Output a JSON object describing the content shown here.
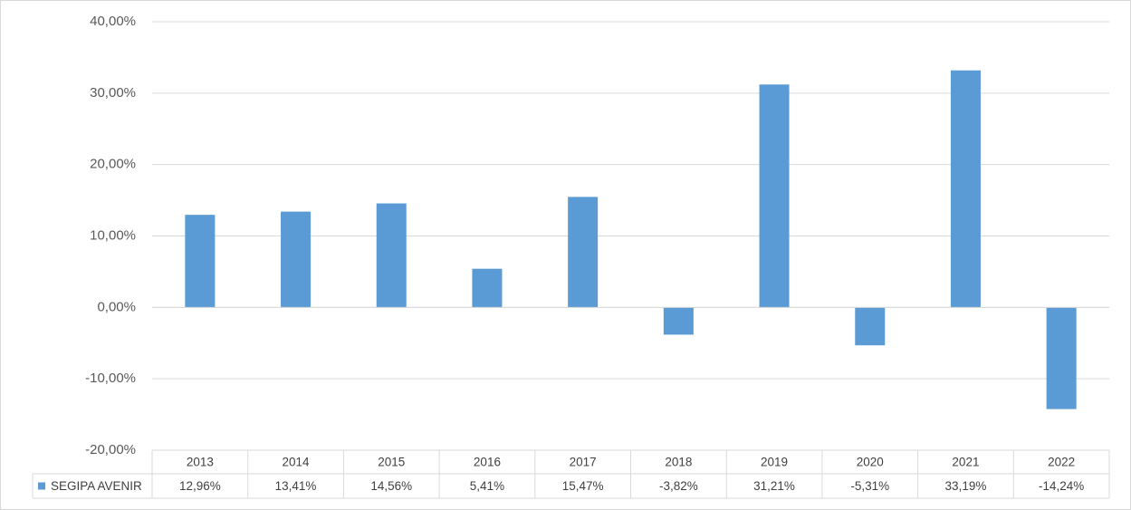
{
  "chart_data": {
    "type": "bar",
    "categories": [
      "2013",
      "2014",
      "2015",
      "2016",
      "2017",
      "2018",
      "2019",
      "2020",
      "2021",
      "2022"
    ],
    "series": [
      {
        "name": "SEGIPA AVENIR",
        "color": "#5b9bd5",
        "values": [
          12.96,
          13.41,
          14.56,
          5.41,
          15.47,
          -3.82,
          31.21,
          -5.31,
          33.19,
          -14.24
        ],
        "value_labels": [
          "12,96%",
          "13,41%",
          "14,56%",
          "5,41%",
          "15,47%",
          "-3,82%",
          "31,21%",
          "-5,31%",
          "33,19%",
          "-14,24%"
        ]
      }
    ],
    "ylim": [
      -20,
      40
    ],
    "yticks": [
      {
        "value": -20,
        "label": "-20,00%"
      },
      {
        "value": -10,
        "label": "-10,00%"
      },
      {
        "value": 0,
        "label": "0,00%"
      },
      {
        "value": 10,
        "label": "10,00%"
      },
      {
        "value": 20,
        "label": "20,00%"
      },
      {
        "value": 30,
        "label": "30,00%"
      },
      {
        "value": 40,
        "label": "40,00%"
      }
    ],
    "grid": true
  }
}
